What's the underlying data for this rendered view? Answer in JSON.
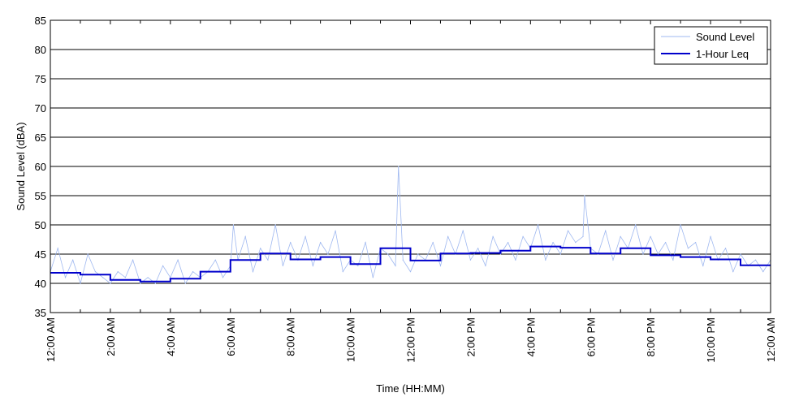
{
  "chart_data": {
    "type": "line",
    "xlabel": "Time (HH:MM)",
    "ylabel": "Sound Level (dBA)",
    "ylim": [
      35,
      85
    ],
    "xlim_hours": [
      0,
      24
    ],
    "y_ticks": [
      35,
      40,
      45,
      50,
      55,
      60,
      65,
      70,
      75,
      80,
      85
    ],
    "x_ticks": [
      {
        "hour": 0,
        "label": "12:00 AM"
      },
      {
        "hour": 2,
        "label": "2:00 AM"
      },
      {
        "hour": 4,
        "label": "4:00 AM"
      },
      {
        "hour": 6,
        "label": "6:00 AM"
      },
      {
        "hour": 8,
        "label": "8:00 AM"
      },
      {
        "hour": 10,
        "label": "10:00 AM"
      },
      {
        "hour": 12,
        "label": "12:00 PM"
      },
      {
        "hour": 14,
        "label": "2:00 PM"
      },
      {
        "hour": 16,
        "label": "4:00 PM"
      },
      {
        "hour": 18,
        "label": "6:00 PM"
      },
      {
        "hour": 20,
        "label": "8:00 PM"
      },
      {
        "hour": 22,
        "label": "10:00 PM"
      },
      {
        "hour": 24,
        "label": "12:00 AM"
      }
    ],
    "grid": "horizontal",
    "legend_position": "top-right",
    "series": [
      {
        "name": "Sound Level",
        "color": "#9fb8f0",
        "x_hours": [
          0,
          0.25,
          0.5,
          0.75,
          1,
          1.25,
          1.5,
          1.75,
          2,
          2.25,
          2.5,
          2.75,
          3,
          3.25,
          3.5,
          3.75,
          4,
          4.25,
          4.5,
          4.75,
          5,
          5.25,
          5.5,
          5.75,
          6,
          6.1,
          6.25,
          6.5,
          6.75,
          7,
          7.25,
          7.5,
          7.75,
          8,
          8.25,
          8.5,
          8.75,
          9,
          9.25,
          9.5,
          9.75,
          10,
          10.25,
          10.5,
          10.75,
          11,
          11.25,
          11.5,
          11.6,
          11.75,
          12,
          12.25,
          12.5,
          12.75,
          13,
          13.25,
          13.5,
          13.75,
          14,
          14.25,
          14.5,
          14.75,
          15,
          15.25,
          15.5,
          15.75,
          16,
          16.25,
          16.5,
          16.75,
          17,
          17.25,
          17.5,
          17.75,
          17.8,
          18,
          18.25,
          18.5,
          18.75,
          19,
          19.25,
          19.5,
          19.75,
          20,
          20.25,
          20.5,
          20.75,
          21,
          21.25,
          21.5,
          21.75,
          22,
          22.25,
          22.5,
          22.75,
          23,
          23.25,
          23.5,
          23.75,
          24
        ],
        "values": [
          42,
          46,
          41,
          44,
          40,
          45,
          42,
          41,
          40,
          42,
          41,
          44,
          40,
          41,
          40,
          43,
          41,
          44,
          40,
          42,
          41,
          42,
          44,
          41,
          43,
          50,
          44,
          48,
          42,
          46,
          44,
          50,
          43,
          47,
          44,
          48,
          43,
          47,
          45,
          49,
          42,
          44,
          43,
          47,
          41,
          46,
          45,
          43,
          60,
          44,
          42,
          45,
          44,
          47,
          43,
          48,
          45,
          49,
          44,
          46,
          43,
          48,
          45,
          47,
          44,
          48,
          46,
          50,
          44,
          47,
          45,
          49,
          47,
          48,
          55,
          46,
          45,
          49,
          44,
          48,
          46,
          50,
          45,
          48,
          45,
          47,
          44,
          50,
          46,
          47,
          43,
          48,
          44,
          46,
          42,
          45,
          43,
          44,
          42,
          44
        ],
        "line_width": 0.8
      },
      {
        "name": "1-Hour Leq",
        "color": "#0000cc",
        "step_hours": [
          0,
          1,
          2,
          3,
          4,
          5,
          6,
          7,
          8,
          9,
          10,
          11,
          12,
          13,
          14,
          15,
          16,
          17,
          18,
          19,
          20,
          21,
          22,
          23
        ],
        "values": [
          41.8,
          41.5,
          40.6,
          40.3,
          40.8,
          42.0,
          44.0,
          45.1,
          44.1,
          44.5,
          43.3,
          46.0,
          43.9,
          45.1,
          45.2,
          45.6,
          46.3,
          46.1,
          45.1,
          46.0,
          44.8,
          44.5,
          44.1,
          43.1
        ],
        "line_width": 2
      }
    ]
  }
}
